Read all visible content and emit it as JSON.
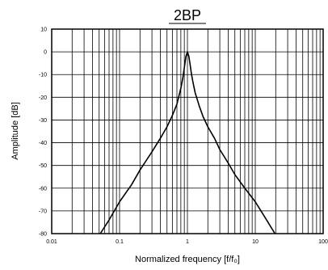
{
  "chart_data": {
    "type": "line",
    "title": "2BP",
    "xlabel": "Normalized frequency [f/f₀]",
    "ylabel": "Amplitude [dB]",
    "x_scale": "log",
    "xlim": [
      0.01,
      100
    ],
    "ylim": [
      -80,
      10
    ],
    "x_ticks": [
      "0.01",
      "0.1",
      "1",
      "10",
      "100"
    ],
    "y_ticks": [
      "10",
      "0",
      "-10",
      "-20",
      "-30",
      "-40",
      "-50",
      "-60",
      "-70",
      "-80"
    ],
    "grid": true,
    "line_color": "#000000",
    "series": [
      {
        "x": [
          0.052,
          0.07,
          0.1,
          0.15,
          0.2,
          0.3,
          0.4,
          0.5,
          0.6,
          0.7,
          0.8,
          0.85,
          0.9,
          0.95,
          1.0,
          1.05,
          1.1,
          1.15,
          1.2,
          1.3,
          1.5,
          1.7,
          2.0,
          2.5,
          3.0,
          4.0,
          5.0,
          7.0,
          10.0,
          14.0,
          19.5
        ],
        "y": [
          -80,
          -74,
          -66,
          -58.5,
          -52,
          -44,
          -38,
          -33,
          -28,
          -23,
          -16,
          -12,
          -7,
          -2,
          0,
          -2,
          -6,
          -10,
          -13,
          -18,
          -24,
          -28.5,
          -33,
          -38,
          -43,
          -49,
          -54,
          -60,
          -66,
          -73,
          -80
        ]
      }
    ]
  }
}
